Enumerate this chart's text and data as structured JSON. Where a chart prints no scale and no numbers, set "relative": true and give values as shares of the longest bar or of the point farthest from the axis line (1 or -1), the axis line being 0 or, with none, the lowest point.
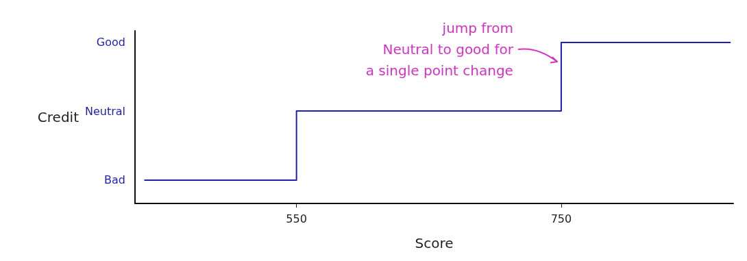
{
  "chart_data": {
    "type": "step",
    "xlabel": "Score",
    "ylabel": "Credit",
    "relative": true,
    "x": [
      435,
      550,
      750,
      878
    ],
    "series": [
      {
        "color": "#1f1fb4",
        "values": [
          0.145,
          0.574,
          1,
          1
        ]
      }
    ],
    "xlim": [
      428,
      880
    ],
    "xticks": [
      550,
      750
    ],
    "annotations": [
      "jump from\nNeutral to good for\na single point change",
      "Bad",
      "Neutral",
      "Good"
    ],
    "grid": false,
    "marker": "none",
    "line_style": "solid"
  }
}
